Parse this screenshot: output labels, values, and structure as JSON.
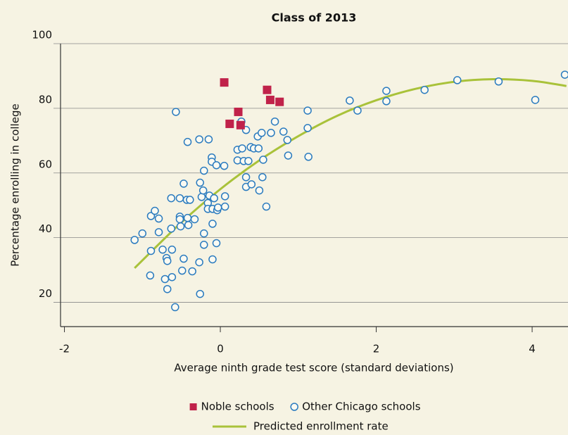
{
  "chart_data": {
    "type": "scatter",
    "title": "Class of 2013",
    "x_label": "Average ninth grade test score (standard deviations)",
    "y_label": "Percentage enrolling in college",
    "xlim": [
      -2.05,
      4.46
    ],
    "ylim": [
      12.5,
      100
    ],
    "xticks": [
      -2,
      0,
      2,
      4
    ],
    "yticks": [
      20,
      40,
      60,
      80,
      100
    ],
    "grid": true,
    "legend": "bottom",
    "series": [
      {
        "name": "Noble schools",
        "color": "#c0224a",
        "marker": "square",
        "x": [
          0.05,
          0.12,
          0.23,
          0.26,
          0.6,
          0.64,
          0.76
        ],
        "values": [
          88.0,
          75.2,
          78.9,
          74.8,
          85.7,
          82.6,
          82.0
        ]
      },
      {
        "name": "Other Chicago schools",
        "color": "#2a7bbf",
        "marker": "circle",
        "x": [
          -1.1,
          -1.0,
          -0.89,
          -0.9,
          -0.89,
          -0.84,
          -0.79,
          -0.79,
          -0.74,
          -0.69,
          -0.68,
          -0.71,
          -0.68,
          -0.62,
          -0.62,
          -0.63,
          -0.63,
          -0.58,
          -0.57,
          -0.52,
          -0.52,
          -0.52,
          -0.51,
          -0.49,
          -0.47,
          -0.47,
          -0.43,
          -0.42,
          -0.42,
          -0.41,
          -0.39,
          -0.36,
          -0.33,
          -0.27,
          -0.26,
          -0.27,
          -0.26,
          -0.24,
          -0.22,
          -0.21,
          -0.21,
          -0.21,
          -0.16,
          -0.15,
          -0.14,
          -0.16,
          -0.11,
          -0.11,
          -0.1,
          -0.1,
          -0.1,
          -0.08,
          -0.05,
          -0.05,
          -0.04,
          -0.03,
          0.05,
          0.06,
          0.06,
          0.22,
          0.22,
          0.28,
          0.27,
          0.3,
          0.33,
          0.33,
          0.33,
          0.36,
          0.39,
          0.4,
          0.43,
          0.48,
          0.49,
          0.5,
          0.53,
          0.54,
          0.55,
          0.59,
          0.65,
          0.7,
          0.81,
          0.86,
          0.87,
          1.12,
          1.12,
          1.13,
          1.66,
          1.76,
          2.13,
          2.13,
          2.62,
          3.04,
          3.57,
          4.04,
          4.42
        ],
        "values": [
          39.3,
          41.3,
          35.9,
          28.3,
          46.7,
          48.3,
          45.9,
          41.7,
          36.3,
          33.7,
          32.8,
          27.2,
          24.1,
          27.8,
          36.3,
          42.8,
          52.2,
          18.5,
          78.9,
          52.2,
          46.5,
          45.7,
          43.5,
          29.8,
          33.5,
          56.7,
          51.7,
          69.6,
          46.1,
          43.9,
          51.7,
          29.6,
          45.7,
          70.4,
          57.0,
          32.4,
          22.6,
          52.6,
          54.6,
          41.3,
          37.8,
          60.7,
          50.7,
          70.4,
          53.0,
          48.9,
          64.8,
          63.5,
          48.9,
          44.3,
          33.3,
          52.2,
          62.4,
          38.3,
          48.5,
          49.3,
          62.2,
          52.8,
          49.6,
          63.9,
          67.2,
          67.6,
          75.9,
          63.7,
          58.7,
          73.3,
          55.7,
          63.7,
          68.0,
          56.5,
          67.6,
          71.3,
          67.6,
          54.6,
          72.4,
          58.7,
          64.1,
          49.6,
          72.4,
          75.9,
          72.8,
          70.2,
          65.4,
          79.3,
          73.9,
          65.0,
          82.4,
          79.3,
          85.4,
          82.2,
          85.7,
          88.7,
          88.3,
          82.6,
          90.4
        ]
      },
      {
        "name": "Predicted enrollment rate",
        "color": "#a9c23a",
        "marker": "line",
        "x": [
          -1.1,
          -0.5,
          0,
          0.5,
          1,
          1.5,
          2,
          2.5,
          3,
          3.5,
          4,
          4.44
        ],
        "values": [
          30.6,
          44.7,
          55.0,
          63.9,
          71.4,
          77.7,
          82.5,
          86.0,
          88.2,
          89.0,
          88.5,
          86.9
        ]
      }
    ]
  }
}
